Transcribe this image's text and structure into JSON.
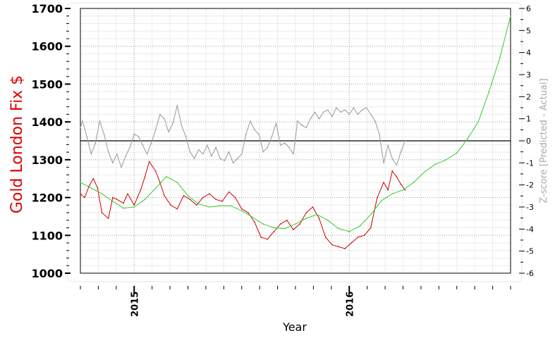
{
  "chart_data": {
    "type": "line",
    "title": "",
    "xlabel": "Year",
    "ylabel": "Gold London Fix $",
    "y2label": "Z-score [Predicted - Actual]",
    "xlim": [
      2014.75,
      2016.75
    ],
    "ylim": [
      1000,
      1700
    ],
    "y2lim": [
      -6,
      6
    ],
    "x_ticks": [
      2015,
      2016
    ],
    "y_ticks": [
      1000,
      1100,
      1200,
      1300,
      1400,
      1500,
      1600,
      1700
    ],
    "y2_ticks": [
      -6,
      -5,
      -4,
      -3,
      -2,
      -1,
      0,
      1,
      2,
      3,
      4,
      5,
      6
    ],
    "grid": true,
    "colors": {
      "gold": "#cc0000",
      "prediction": "#33cc33",
      "zscore": "#999999",
      "zero_line": "#000000"
    },
    "series": [
      {
        "name": "",
        "axis": "left",
        "color": "#cc0000",
        "x": [
          2014.75,
          2014.77,
          2014.79,
          2014.81,
          2014.83,
          2014.85,
          2014.88,
          2014.9,
          2014.92,
          2014.95,
          2014.97,
          2015.0,
          2015.03,
          2015.05,
          2015.07,
          2015.1,
          2015.12,
          2015.14,
          2015.17,
          2015.2,
          2015.23,
          2015.26,
          2015.29,
          2015.32,
          2015.35,
          2015.38,
          2015.41,
          2015.44,
          2015.47,
          2015.5,
          2015.53,
          2015.56,
          2015.59,
          2015.62,
          2015.65,
          2015.68,
          2015.71,
          2015.74,
          2015.77,
          2015.8,
          2015.83,
          2015.86,
          2015.89,
          2015.92,
          2015.95,
          2015.98,
          2016.01,
          2016.04,
          2016.07,
          2016.1,
          2016.13,
          2016.16,
          2016.18,
          2016.2,
          2016.22,
          2016.24,
          2016.26
        ],
        "values": [
          1210,
          1200,
          1230,
          1250,
          1225,
          1160,
          1145,
          1200,
          1195,
          1185,
          1210,
          1180,
          1220,
          1255,
          1295,
          1270,
          1240,
          1205,
          1180,
          1170,
          1205,
          1195,
          1180,
          1200,
          1210,
          1195,
          1190,
          1215,
          1200,
          1170,
          1160,
          1135,
          1095,
          1090,
          1110,
          1130,
          1140,
          1115,
          1130,
          1160,
          1175,
          1145,
          1095,
          1075,
          1070,
          1065,
          1080,
          1095,
          1100,
          1120,
          1200,
          1240,
          1220,
          1270,
          1255,
          1235,
          1220
        ]
      },
      {
        "name": "",
        "axis": "left",
        "color": "#33cc33",
        "x": [
          2014.75,
          2014.8,
          2014.85,
          2014.9,
          2014.95,
          2015.0,
          2015.05,
          2015.1,
          2015.15,
          2015.2,
          2015.25,
          2015.3,
          2015.35,
          2015.4,
          2015.45,
          2015.5,
          2015.55,
          2015.6,
          2015.65,
          2015.7,
          2015.75,
          2015.8,
          2015.85,
          2015.9,
          2015.95,
          2016.0,
          2016.05,
          2016.1,
          2016.15,
          2016.2,
          2016.25,
          2016.3,
          2016.35,
          2016.4,
          2016.45,
          2016.5,
          2016.55,
          2016.6,
          2016.65,
          2016.7,
          2016.75
        ],
        "values": [
          1240,
          1225,
          1210,
          1190,
          1172,
          1175,
          1195,
          1225,
          1255,
          1240,
          1205,
          1183,
          1175,
          1178,
          1178,
          1165,
          1148,
          1130,
          1120,
          1118,
          1130,
          1145,
          1155,
          1140,
          1118,
          1110,
          1125,
          1155,
          1192,
          1210,
          1220,
          1240,
          1268,
          1288,
          1300,
          1318,
          1355,
          1400,
          1480,
          1570,
          1680
        ]
      },
      {
        "name": "",
        "axis": "right",
        "color": "#999999",
        "x": [
          2014.75,
          2014.76,
          2014.78,
          2014.8,
          2014.82,
          2014.84,
          2014.86,
          2014.88,
          2014.9,
          2014.92,
          2014.94,
          2014.96,
          2014.98,
          2015.0,
          2015.02,
          2015.04,
          2015.06,
          2015.08,
          2015.1,
          2015.12,
          2015.14,
          2015.16,
          2015.18,
          2015.2,
          2015.22,
          2015.24,
          2015.26,
          2015.28,
          2015.3,
          2015.32,
          2015.34,
          2015.36,
          2015.38,
          2015.4,
          2015.42,
          2015.44,
          2015.46,
          2015.48,
          2015.5,
          2015.52,
          2015.54,
          2015.56,
          2015.58,
          2015.6,
          2015.62,
          2015.64,
          2015.66,
          2015.68,
          2015.7,
          2015.72,
          2015.74,
          2015.76,
          2015.78,
          2015.8,
          2015.82,
          2015.84,
          2015.86,
          2015.88,
          2015.9,
          2015.92,
          2015.94,
          2015.96,
          2015.98,
          2016.0,
          2016.02,
          2016.04,
          2016.06,
          2016.08,
          2016.1,
          2016.12,
          2016.14,
          2016.16,
          2016.18,
          2016.2,
          2016.22,
          2016.24,
          2016.26
        ],
        "values": [
          0.6,
          0.9,
          0.2,
          -0.6,
          -0.1,
          0.9,
          0.3,
          -0.5,
          -1.0,
          -0.6,
          -1.2,
          -0.7,
          -0.3,
          0.3,
          0.2,
          -0.2,
          -0.6,
          -0.1,
          0.5,
          1.2,
          1.0,
          0.4,
          0.8,
          1.6,
          0.7,
          0.2,
          -0.5,
          -0.8,
          -0.4,
          -0.6,
          -0.2,
          -0.7,
          -0.3,
          -0.8,
          -0.9,
          -0.5,
          -1.0,
          -0.8,
          -0.6,
          0.3,
          0.9,
          0.5,
          0.3,
          -0.5,
          -0.3,
          0.2,
          0.8,
          -0.2,
          -0.1,
          -0.3,
          -0.6,
          0.9,
          0.7,
          0.6,
          1.0,
          1.3,
          1.0,
          1.3,
          1.4,
          1.1,
          1.5,
          1.3,
          1.4,
          1.2,
          1.5,
          1.2,
          1.4,
          1.5,
          1.2,
          0.9,
          0.3,
          -1.0,
          -0.2,
          -0.8,
          -1.1,
          -0.5,
          0.0
        ]
      }
    ],
    "reference_lines": [
      {
        "axis": "right",
        "y": 0,
        "color": "#000000"
      }
    ],
    "x_minor_ticks_per_year": 12
  }
}
